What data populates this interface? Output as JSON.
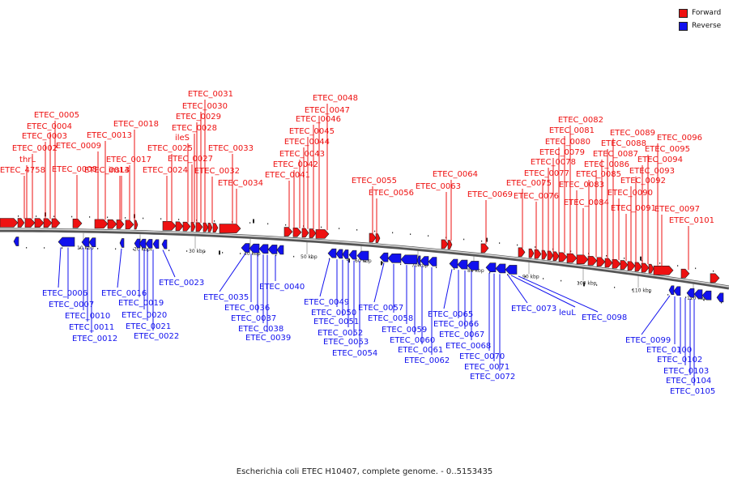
{
  "caption": "Escherichia coli ETEC H10407, complete genome. - 0..5153435",
  "legend": [
    {
      "label": "Forward",
      "color": "#ee1111"
    },
    {
      "label": "Reverse",
      "color": "#1111ee"
    }
  ],
  "colors": {
    "forward": "#ee1111",
    "reverse": "#1111ee",
    "backbone": "#555555"
  },
  "axis_ticks": [
    "10 kbp",
    "20 kbp",
    "30 kbp",
    "40 kbp",
    "50 kbp",
    "60 kbp",
    "70 kbp",
    "80 kbp",
    "90 kbp",
    "100 kbp",
    "110 kbp",
    "120 kbp"
  ],
  "forward_genes": [
    "thrL",
    "ETEC_4758",
    "ETEC_0002",
    "ETEC_0003",
    "ETEC_0004",
    "ETEC_0005",
    "ETEC_0008",
    "ETEC_0009",
    "ETEC_0013",
    "ETEC_0014",
    "insL3",
    "ETEC_0017",
    "ETEC_0018",
    "ETEC_0024",
    "ETEC_0025",
    "ileS",
    "ETEC_0027",
    "ETEC_0028",
    "ETEC_0029",
    "ETEC_0030",
    "ETEC_0031",
    "ETEC_0032",
    "ETEC_0033",
    "ETEC_0034",
    "ETEC_0041",
    "ETEC_0042",
    "ETEC_0043",
    "ETEC_0044",
    "ETEC_0045",
    "ETEC_0046",
    "ETEC_0047",
    "ETEC_0048",
    "ETEC_0055",
    "ETEC_0056",
    "ETEC_0063",
    "ETEC_0064",
    "ETEC_0069",
    "ETEC_0075",
    "ETEC_0076",
    "ETEC_0077",
    "ETEC_0078",
    "ETEC_0079",
    "ETEC_0080",
    "ETEC_0081",
    "ETEC_0082",
    "ETEC_0083",
    "ETEC_0084",
    "ETEC_0085",
    "ETEC_0086",
    "ETEC_0087",
    "ETEC_0088",
    "ETEC_0089",
    "ETEC_0090",
    "ETEC_0091",
    "ETEC_0092",
    "ETEC_0093",
    "ETEC_0094",
    "ETEC_0095",
    "ETEC_0096",
    "ETEC_0097",
    "ETEC_0101"
  ],
  "reverse_genes": [
    "ETEC_0006",
    "ETEC_0007",
    "ETEC_0010",
    "ETEC_0011",
    "ETEC_0012",
    "ETEC_0016",
    "ETEC_0019",
    "ETEC_0020",
    "ETEC_0021",
    "ETEC_0022",
    "ETEC_0023",
    "ETEC_0035",
    "ETEC_0036",
    "ETEC_0037",
    "ETEC_0038",
    "ETEC_0039",
    "ETEC_0040",
    "ETEC_0049",
    "ETEC_0050",
    "ETEC_0051",
    "ETEC_0052",
    "ETEC_0053",
    "ETEC_0054",
    "ETEC_0057",
    "ETEC_0058",
    "ETEC_0059",
    "ETEC_0060",
    "ETEC_0061",
    "ETEC_0062",
    "ETEC_0065",
    "ETEC_0066",
    "ETEC_0067",
    "ETEC_0068",
    "ETEC_0070",
    "ETEC_0071",
    "ETEC_0072",
    "ETEC_0073",
    "leuL",
    "ETEC_0098",
    "ETEC_0099",
    "ETEC_0100",
    "ETEC_0102",
    "ETEC_0103",
    "ETEC_0104",
    "ETEC_0105"
  ]
}
